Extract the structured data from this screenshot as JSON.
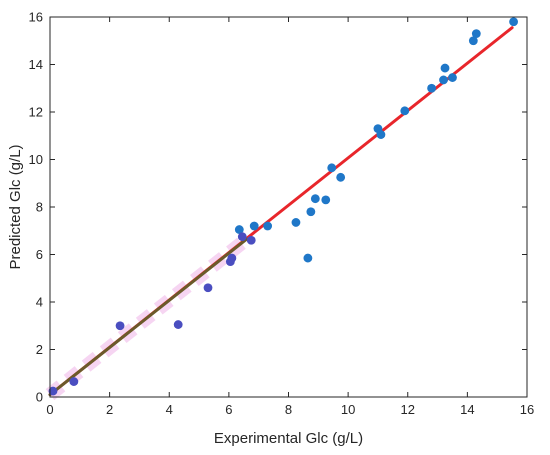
{
  "chart_data": {
    "type": "scatter",
    "title": "",
    "xlabel": "Experimental Glc (g/L)",
    "ylabel": "Predicted Glc (g/L)",
    "xlim": [
      0,
      16
    ],
    "ylim": [
      0,
      16
    ],
    "x_ticks": [
      0,
      2,
      4,
      6,
      8,
      10,
      12,
      14,
      16
    ],
    "y_ticks": [
      0,
      2,
      4,
      6,
      8,
      10,
      12,
      14,
      16
    ],
    "x_tick_labels": [
      "0",
      "2",
      "4",
      "6",
      "8",
      "10",
      "12",
      "14",
      "16"
    ],
    "y_tick_labels": [
      "0",
      "2",
      "4",
      "6",
      "8",
      "10",
      "12",
      "14",
      "16"
    ],
    "grid": false,
    "legend": "none",
    "series": [
      {
        "kind": "line",
        "color": "#e8262b",
        "points": [
          [
            0,
            0.1
          ],
          [
            15.5,
            15.55
          ]
        ]
      },
      {
        "kind": "line",
        "color": "#6b5a2a",
        "points": [
          [
            0,
            0.1
          ],
          [
            6.6,
            6.65
          ]
        ]
      },
      {
        "kind": "band",
        "color": "#f3c8ee",
        "points": [
          [
            0,
            0.1
          ],
          [
            6.6,
            6.65
          ]
        ]
      },
      {
        "kind": "scatter",
        "color": "#1f77c8",
        "points": [
          [
            6.35,
            7.05
          ],
          [
            6.85,
            7.2
          ],
          [
            7.3,
            7.2
          ],
          [
            8.25,
            7.35
          ],
          [
            8.65,
            5.85
          ],
          [
            8.75,
            7.8
          ],
          [
            8.9,
            8.35
          ],
          [
            9.25,
            8.3
          ],
          [
            9.45,
            9.65
          ],
          [
            9.75,
            9.25
          ],
          [
            11.0,
            11.3
          ],
          [
            11.1,
            11.05
          ],
          [
            11.9,
            12.05
          ],
          [
            12.8,
            13.0
          ],
          [
            13.2,
            13.35
          ],
          [
            13.25,
            13.85
          ],
          [
            13.5,
            13.45
          ],
          [
            14.2,
            15.0
          ],
          [
            14.3,
            15.3
          ],
          [
            15.55,
            15.8
          ]
        ]
      },
      {
        "kind": "scatter",
        "color": "#4a4ec0",
        "points": [
          [
            0.1,
            0.25
          ],
          [
            0.8,
            0.65
          ],
          [
            2.35,
            3.0
          ],
          [
            4.3,
            3.05
          ],
          [
            5.3,
            4.6
          ],
          [
            6.05,
            5.7
          ],
          [
            6.1,
            5.85
          ],
          [
            6.45,
            6.75
          ],
          [
            6.75,
            6.6
          ]
        ]
      }
    ]
  }
}
